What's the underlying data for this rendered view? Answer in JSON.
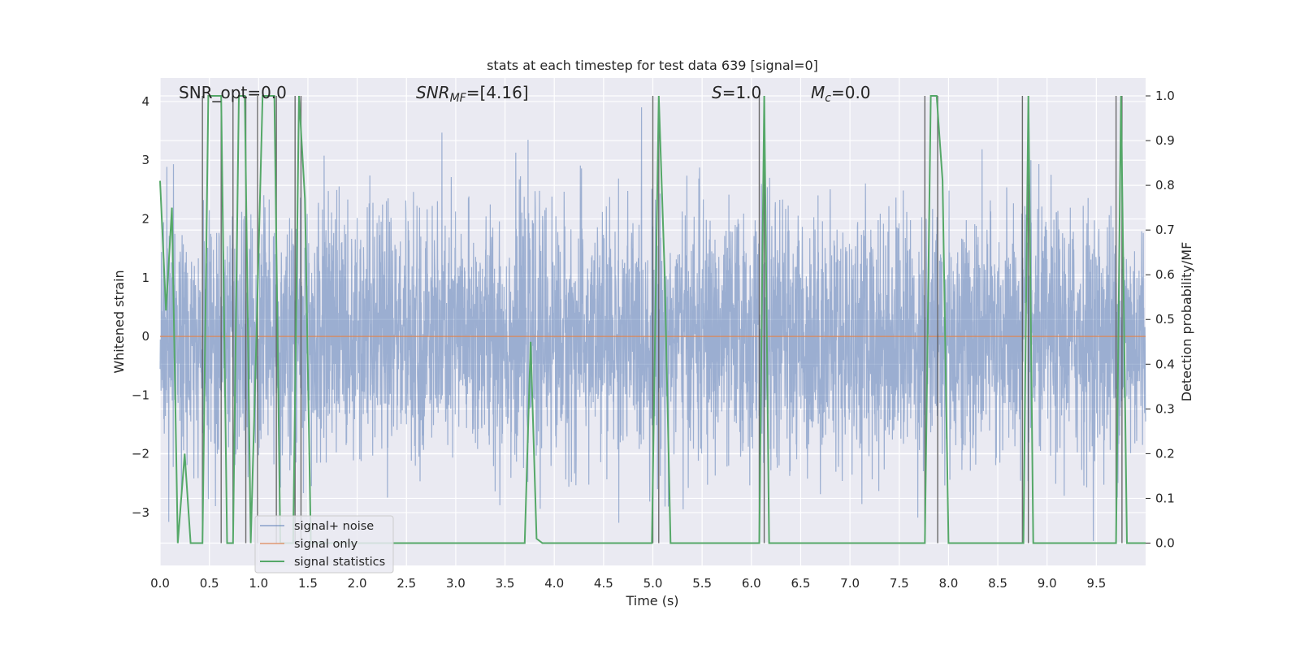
{
  "chart_data": {
    "type": "line",
    "title": "stats at each timestep for test data 639 [signal=0]",
    "xlabel": "Time (s)",
    "ylabel": "Whitened strain",
    "ylabel_right": "Detection probability/MF",
    "xlim": [
      0.0,
      10.0
    ],
    "ylim": [
      -3.9,
      4.4
    ],
    "ylim_right": [
      -0.05,
      1.04
    ],
    "x_ticks": [
      "0.0",
      "0.5",
      "1.0",
      "1.5",
      "2.0",
      "2.5",
      "3.0",
      "3.5",
      "4.0",
      "4.5",
      "5.0",
      "5.5",
      "6.0",
      "6.5",
      "7.0",
      "7.5",
      "8.0",
      "8.5",
      "9.0",
      "9.5"
    ],
    "y_ticks": [
      "4",
      "3",
      "2",
      "1",
      "0",
      "−1",
      "−2",
      "−3"
    ],
    "y_right_ticks": [
      "1.0",
      "0.9",
      "0.8",
      "0.7",
      "0.6",
      "0.5",
      "0.4",
      "0.3",
      "0.2",
      "0.1",
      "0.0"
    ],
    "grid": true,
    "legend_position": "lower-left",
    "annotations": {
      "snr_opt": "SNR_opt=0.0",
      "snr_mf_label": "SNR",
      "snr_mf_sub": "MF",
      "snr_mf_value": "=[4.16]",
      "s_label": "S",
      "s_value": "=1.0",
      "mc_label": "M",
      "mc_sub": "c",
      "mc_value": "=0.0"
    },
    "series": [
      {
        "name": "signal+ noise",
        "color": "#4c72b0",
        "axis": "left",
        "description_values": "dense noise, roughly symmetric within about -3.6 to 3.9"
      },
      {
        "name": "signal only",
        "color": "#dd8452",
        "axis": "left",
        "x": [
          0.0,
          10.0
        ],
        "y": [
          0.0,
          0.0
        ]
      },
      {
        "name": "signal statistics",
        "color": "#55a868",
        "axis": "right",
        "x": [
          0.0,
          0.06,
          0.12,
          0.18,
          0.25,
          0.31,
          0.37,
          0.43,
          0.49,
          0.55,
          0.62,
          0.68,
          0.74,
          0.8,
          0.86,
          0.92,
          0.98,
          1.04,
          1.1,
          1.16,
          1.22,
          1.28,
          1.35,
          1.41,
          1.47,
          1.53,
          1.59,
          1.65,
          1.71,
          1.77,
          1.84,
          1.9,
          1.96,
          3.7,
          3.76,
          3.82,
          3.88,
          4.99,
          5.06,
          5.12,
          5.18,
          6.08,
          6.13,
          6.18,
          7.76,
          7.82,
          7.88,
          7.94,
          8.0,
          8.76,
          8.81,
          8.86,
          9.7,
          9.75,
          9.81,
          10.0
        ],
        "y": [
          0.81,
          0.52,
          0.75,
          0.0,
          0.2,
          0.0,
          0.0,
          0.0,
          1.0,
          1.0,
          1.0,
          0.0,
          0.0,
          1.0,
          1.0,
          0.0,
          0.48,
          1.0,
          1.0,
          1.0,
          0.0,
          0.0,
          0.0,
          1.0,
          0.77,
          0.0,
          0.0,
          0.0,
          0.0,
          0.0,
          0.0,
          0.0,
          0.0,
          0.0,
          0.45,
          0.01,
          0.0,
          0.0,
          1.0,
          0.6,
          0.0,
          0.0,
          1.0,
          0.0,
          0.0,
          1.0,
          1.0,
          0.81,
          0.0,
          0.0,
          1.0,
          0.0,
          0.0,
          1.0,
          0.0,
          0.0
        ]
      }
    ],
    "detection_markers_x": [
      0.43,
      0.62,
      0.74,
      0.87,
      0.99,
      1.18,
      1.37,
      1.43,
      5.0,
      5.06,
      6.08,
      6.13,
      7.76,
      7.89,
      8.75,
      8.81,
      9.7,
      9.76
    ]
  },
  "legend": {
    "items": [
      {
        "label": "signal+ noise",
        "color": "#4c72b0"
      },
      {
        "label": "signal only",
        "color": "#dd8452"
      },
      {
        "label": "signal statistics",
        "color": "#55a868"
      }
    ]
  }
}
